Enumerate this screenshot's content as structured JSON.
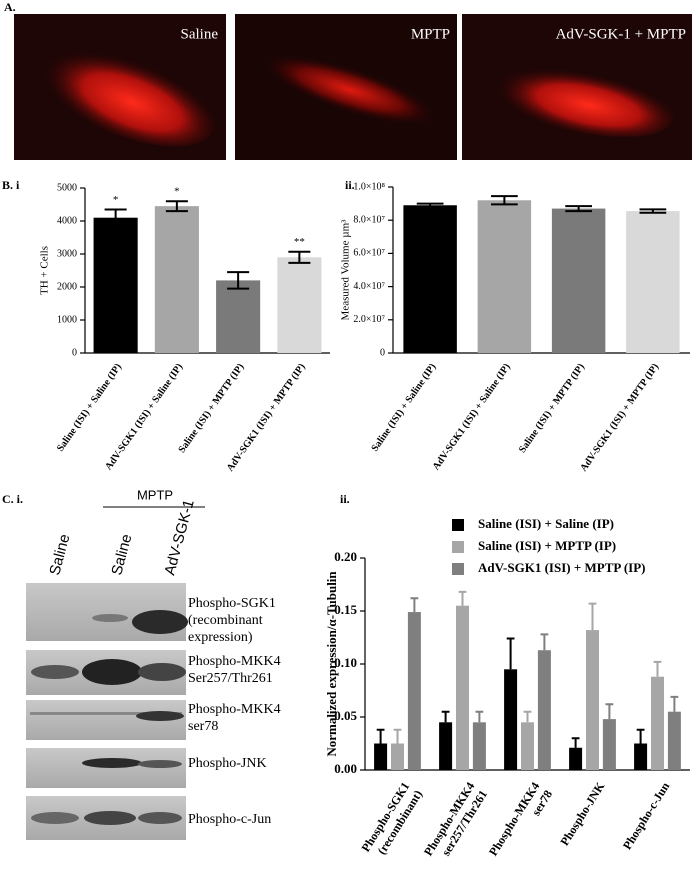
{
  "panel_labels": [
    "A.",
    "B. i",
    "ii.",
    "C. i.",
    "ii."
  ],
  "images": [
    "Saline",
    "MPTP",
    "AdV-SGK-1 + MPTP"
  ],
  "blot": {
    "group_label": "MPTP",
    "lanes": [
      "Saline",
      "Saline",
      "AdV-SGK-1"
    ],
    "rows": [
      [
        "Phospho-SGK1",
        "(recombinant",
        "expression)"
      ],
      [
        "Phospho-MKK4",
        "Ser257/Thr261"
      ],
      [
        "Phospho-MKK4",
        "ser78"
      ],
      [
        "Phospho-JNK"
      ],
      [
        "Phospho-c-Jun"
      ]
    ]
  },
  "chart_data": [
    {
      "type": "bar",
      "y_label": "TH + Cells",
      "categories": [
        "Saline (ISI) + Saline (IP)",
        "AdV-SGK1 (ISI) + Saline (IP)",
        "Saline (ISI) + MPTP (IP)",
        "AdV-SGK1 (ISI) + MPTP (IP)"
      ],
      "values": [
        4100,
        4450,
        2200,
        2900
      ],
      "errors": [
        250,
        150,
        250,
        170
      ],
      "significance": [
        "*",
        "*",
        null,
        "**"
      ],
      "colors": [
        "#000000",
        "#a6a6a6",
        "#7a7a7a",
        "#d9d9d9"
      ],
      "ylim": [
        0,
        5000
      ],
      "yticks": [
        0,
        1000,
        2000,
        3000,
        4000,
        5000
      ]
    },
    {
      "type": "bar",
      "y_label": "Measured Volume µm³",
      "categories": [
        "Saline (ISI) + Saline (IP)",
        "AdV-SGK1 (ISI) + Saline (IP)",
        "Saline (ISI) + MPTP (IP)",
        "AdV-SGK1 (ISI) + MPTP (IP)"
      ],
      "values": [
        89000000,
        92000000,
        87000000,
        85500000
      ],
      "errors": [
        1000000,
        2500000,
        1500000,
        1000000
      ],
      "colors": [
        "#000000",
        "#a6a6a6",
        "#7a7a7a",
        "#d9d9d9"
      ],
      "ylim": [
        0,
        100000000
      ],
      "yticks": [
        0,
        {
          "value": 20000000,
          "label": "2.0×10⁷"
        },
        {
          "value": 40000000,
          "label": "4.0×10⁷"
        },
        {
          "value": 60000000,
          "label": "6.0×10⁷"
        },
        {
          "value": 80000000,
          "label": "8.0×10⁷"
        },
        {
          "value": 100000000,
          "label": "1.0×10⁸"
        }
      ]
    },
    {
      "type": "grouped_bar",
      "y_label": "Normalized expression/α-Tubulin",
      "categories": [
        [
          "Phospho-SGK1",
          "(recombinant)"
        ],
        [
          "Phospho-MKK4",
          "ser257/Thr261"
        ],
        [
          "Phospho-MKK4",
          "ser78"
        ],
        [
          "Phospho-JNK"
        ],
        [
          "Phospho-c-Jun"
        ]
      ],
      "series": [
        {
          "name": "Saline (ISI) + Saline (IP)",
          "color": "#000000",
          "values": [
            0.025,
            0.045,
            0.095,
            0.021,
            0.025
          ],
          "errors": [
            0.013,
            0.01,
            0.029,
            0.009,
            0.013
          ]
        },
        {
          "name": "Saline (ISI) + MPTP (IP)",
          "color": "#a6a6a6",
          "values": [
            0.025,
            0.155,
            0.045,
            0.132,
            0.088
          ],
          "errors": [
            0.013,
            0.013,
            0.01,
            0.025,
            0.014
          ]
        },
        {
          "name": "AdV-SGK1 (ISI) + MPTP (IP)",
          "color": "#7f7f7f",
          "values": [
            0.149,
            0.045,
            0.113,
            0.048,
            0.055
          ],
          "errors": [
            0.013,
            0.01,
            0.015,
            0.014,
            0.014
          ]
        }
      ],
      "ylim": [
        0,
        0.2
      ],
      "yticks": [
        {
          "value": 0,
          "label": "0.00"
        },
        {
          "value": 0.05,
          "label": "0.05"
        },
        {
          "value": 0.1,
          "label": "0.10"
        },
        {
          "value": 0.15,
          "label": "0.15"
        },
        {
          "value": 0.2,
          "label": "0.20"
        }
      ]
    }
  ]
}
